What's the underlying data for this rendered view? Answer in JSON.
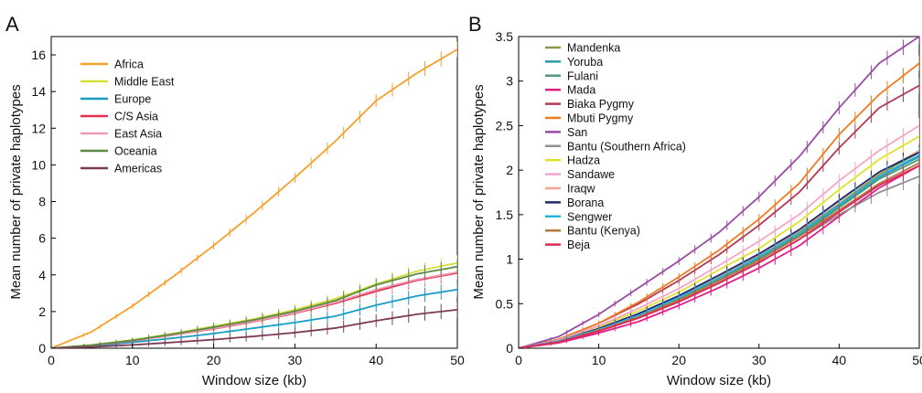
{
  "chart_data": [
    {
      "panel": "A",
      "type": "line",
      "xlabel": "Window size (kb)",
      "ylabel": "Mean number of private haplotypes",
      "xlim": [
        0,
        50
      ],
      "ylim": [
        0,
        17
      ],
      "xticks": [
        0,
        10,
        20,
        30,
        40,
        50
      ],
      "yticks": [
        0,
        2,
        4,
        6,
        8,
        10,
        12,
        14,
        16
      ],
      "error_bars": true,
      "legend_position": "top-left",
      "series": [
        {
          "name": "Africa",
          "color": "#f5a02c",
          "x": [
            0,
            5,
            10,
            15,
            20,
            25,
            30,
            35,
            40,
            45,
            50
          ],
          "y": [
            0,
            0.9,
            2.3,
            3.9,
            5.6,
            7.4,
            9.3,
            11.3,
            13.5,
            15.0,
            16.3
          ]
        },
        {
          "name": "Middle East",
          "color": "#d4e03a",
          "x": [
            0,
            5,
            10,
            15,
            20,
            25,
            30,
            35,
            40,
            45,
            50
          ],
          "y": [
            0,
            0.18,
            0.45,
            0.8,
            1.2,
            1.6,
            2.1,
            2.7,
            3.5,
            4.2,
            4.65
          ]
        },
        {
          "name": "Europe",
          "color": "#1a9cc4",
          "x": [
            0,
            5,
            10,
            15,
            20,
            25,
            30,
            35,
            40,
            45,
            50
          ],
          "y": [
            0,
            0.12,
            0.32,
            0.55,
            0.8,
            1.1,
            1.4,
            1.75,
            2.35,
            2.85,
            3.2
          ]
        },
        {
          "name": "C/S Asia",
          "color": "#e8304e",
          "x": [
            0,
            5,
            10,
            15,
            20,
            25,
            30,
            35,
            40,
            45,
            50
          ],
          "y": [
            0,
            0.16,
            0.4,
            0.72,
            1.05,
            1.45,
            1.9,
            2.45,
            3.1,
            3.7,
            4.1
          ]
        },
        {
          "name": "East Asia",
          "color": "#f19ab8",
          "x": [
            0,
            5,
            10,
            15,
            20,
            25,
            30,
            35,
            40,
            45,
            50
          ],
          "y": [
            0,
            0.16,
            0.41,
            0.73,
            1.07,
            1.47,
            1.93,
            2.5,
            3.2,
            3.75,
            4.15
          ]
        },
        {
          "name": "Oceania",
          "color": "#5a8a44",
          "x": [
            0,
            5,
            10,
            15,
            20,
            25,
            30,
            35,
            40,
            45,
            50
          ],
          "y": [
            0,
            0.17,
            0.43,
            0.77,
            1.15,
            1.55,
            2.02,
            2.6,
            3.45,
            4.05,
            4.45
          ]
        },
        {
          "name": "Americas",
          "color": "#7b3b55",
          "x": [
            0,
            5,
            10,
            15,
            20,
            25,
            30,
            35,
            40,
            45,
            50
          ],
          "y": [
            0,
            0.07,
            0.18,
            0.32,
            0.47,
            0.65,
            0.85,
            1.1,
            1.5,
            1.85,
            2.1
          ]
        }
      ]
    },
    {
      "panel": "B",
      "type": "line",
      "xlabel": "Window size (kb)",
      "ylabel": "Mean number of private haplotypes",
      "xlim": [
        0,
        50
      ],
      "ylim": [
        0,
        3.5
      ],
      "xticks": [
        0,
        10,
        20,
        30,
        40,
        50
      ],
      "yticks": [
        0,
        0.5,
        1,
        1.5,
        2,
        2.5,
        3,
        3.5
      ],
      "error_bars": true,
      "legend_position": "top-left",
      "series": [
        {
          "name": "Mandenka",
          "color": "#8b9a4a",
          "x": [
            0,
            5,
            10,
            15,
            20,
            25,
            30,
            35,
            40,
            45,
            50
          ],
          "y": [
            0,
            0.08,
            0.22,
            0.38,
            0.57,
            0.8,
            1.03,
            1.3,
            1.62,
            1.95,
            2.2
          ]
        },
        {
          "name": "Yoruba",
          "color": "#2a9aa8",
          "x": [
            0,
            5,
            10,
            15,
            20,
            25,
            30,
            35,
            40,
            45,
            50
          ],
          "y": [
            0,
            0.08,
            0.22,
            0.37,
            0.56,
            0.78,
            1.02,
            1.28,
            1.6,
            1.92,
            2.15
          ]
        },
        {
          "name": "Fulani",
          "color": "#4e9a7a",
          "x": [
            0,
            5,
            10,
            15,
            20,
            25,
            30,
            35,
            40,
            45,
            50
          ],
          "y": [
            0,
            0.08,
            0.21,
            0.36,
            0.55,
            0.77,
            1.0,
            1.26,
            1.58,
            1.9,
            2.12
          ]
        },
        {
          "name": "Mada",
          "color": "#e0208a",
          "x": [
            0,
            5,
            10,
            15,
            20,
            25,
            30,
            35,
            40,
            45,
            50
          ],
          "y": [
            0,
            0.06,
            0.17,
            0.3,
            0.48,
            0.68,
            0.9,
            1.15,
            1.48,
            1.8,
            2.05
          ]
        },
        {
          "name": "Biaka Pygmy",
          "color": "#b03a52",
          "x": [
            0,
            5,
            10,
            15,
            20,
            25,
            30,
            35,
            40,
            45,
            50
          ],
          "y": [
            0,
            0.1,
            0.28,
            0.5,
            0.76,
            1.05,
            1.38,
            1.75,
            2.25,
            2.7,
            2.95
          ]
        },
        {
          "name": "Mbuti Pygmy",
          "color": "#f07a20",
          "x": [
            0,
            5,
            10,
            15,
            20,
            25,
            30,
            35,
            40,
            45,
            50
          ],
          "y": [
            0,
            0.1,
            0.28,
            0.52,
            0.8,
            1.1,
            1.45,
            1.85,
            2.4,
            2.85,
            3.2
          ]
        },
        {
          "name": "San",
          "color": "#9a4aa4",
          "x": [
            0,
            5,
            10,
            15,
            20,
            25,
            30,
            35,
            40,
            45,
            50
          ],
          "y": [
            0,
            0.13,
            0.38,
            0.68,
            0.98,
            1.3,
            1.7,
            2.15,
            2.7,
            3.2,
            3.5
          ]
        },
        {
          "name": "Bantu (Southern Africa)",
          "color": "#909090",
          "x": [
            0,
            5,
            10,
            15,
            20,
            25,
            30,
            35,
            40,
            45,
            50
          ],
          "y": [
            0,
            0.07,
            0.2,
            0.35,
            0.53,
            0.74,
            0.97,
            1.22,
            1.5,
            1.75,
            1.93
          ]
        },
        {
          "name": "Hadza",
          "color": "#e0e030",
          "x": [
            0,
            5,
            10,
            15,
            20,
            25,
            30,
            35,
            40,
            45,
            50
          ],
          "y": [
            0,
            0.09,
            0.24,
            0.42,
            0.63,
            0.88,
            1.12,
            1.42,
            1.78,
            2.12,
            2.38
          ]
        },
        {
          "name": "Sandawe",
          "color": "#f4a6c8",
          "x": [
            0,
            5,
            10,
            15,
            20,
            25,
            30,
            35,
            40,
            45,
            50
          ],
          "y": [
            0,
            0.09,
            0.25,
            0.45,
            0.67,
            0.93,
            1.2,
            1.5,
            1.88,
            2.22,
            2.5
          ]
        },
        {
          "name": "Iraqw",
          "color": "#f2a88a",
          "x": [
            0,
            5,
            10,
            15,
            20,
            25,
            30,
            35,
            40,
            45,
            50
          ],
          "y": [
            0,
            0.08,
            0.22,
            0.38,
            0.58,
            0.81,
            1.05,
            1.32,
            1.65,
            1.97,
            2.22
          ]
        },
        {
          "name": "Borana",
          "color": "#1c2a70",
          "x": [
            0,
            5,
            10,
            15,
            20,
            25,
            30,
            35,
            40,
            45,
            50
          ],
          "y": [
            0,
            0.08,
            0.22,
            0.39,
            0.59,
            0.82,
            1.06,
            1.33,
            1.66,
            1.98,
            2.2
          ]
        },
        {
          "name": "Sengwer",
          "color": "#28b4e0",
          "x": [
            0,
            5,
            10,
            15,
            20,
            25,
            30,
            35,
            40,
            45,
            50
          ],
          "y": [
            0,
            0.08,
            0.21,
            0.37,
            0.57,
            0.79,
            1.03,
            1.29,
            1.61,
            1.93,
            2.17
          ]
        },
        {
          "name": "Bantu (Kenya)",
          "color": "#b07a40",
          "x": [
            0,
            5,
            10,
            15,
            20,
            25,
            30,
            35,
            40,
            45,
            50
          ],
          "y": [
            0,
            0.07,
            0.2,
            0.35,
            0.54,
            0.76,
            0.99,
            1.25,
            1.55,
            1.85,
            2.08
          ]
        },
        {
          "name": "Beja",
          "color": "#e02858",
          "x": [
            0,
            5,
            10,
            15,
            20,
            25,
            30,
            35,
            40,
            45,
            50
          ],
          "y": [
            0,
            0.07,
            0.19,
            0.34,
            0.52,
            0.73,
            0.96,
            1.22,
            1.53,
            1.83,
            2.05
          ]
        }
      ]
    }
  ]
}
